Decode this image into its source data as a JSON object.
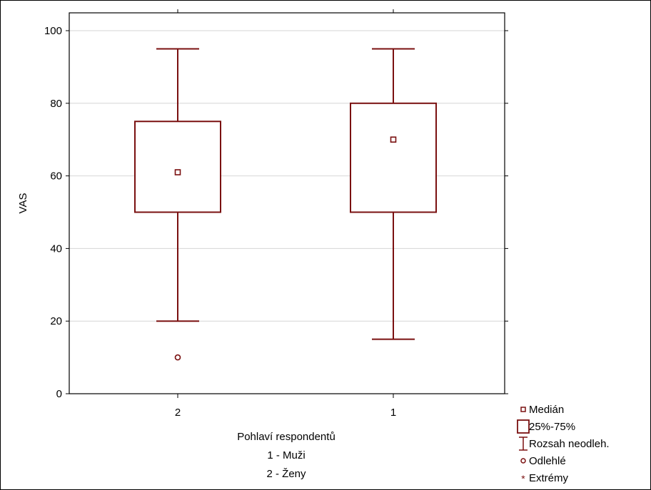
{
  "chart_data": {
    "type": "boxplot",
    "ylabel": "VAS",
    "xlabel_lines": [
      "Pohlaví respondentů",
      "1 - Muži",
      "2 - Ženy"
    ],
    "ylim": [
      0,
      100
    ],
    "yticks": [
      0,
      20,
      40,
      60,
      80,
      100
    ],
    "grid": true,
    "legend_position": "bottom-right, outside plot",
    "colors": {
      "series": "#7a1010",
      "grid": "#d6d6d6",
      "axis": "#000000"
    },
    "categories": [
      "2",
      "1"
    ],
    "boxes": [
      {
        "category": "2",
        "median": 61,
        "q1": 50,
        "q3": 75,
        "whisker_low": 20,
        "whisker_high": 95,
        "outliers": [
          10
        ],
        "extremes": []
      },
      {
        "category": "1",
        "median": 70,
        "q1": 50,
        "q3": 80,
        "whisker_low": 15,
        "whisker_high": 95,
        "outliers": [],
        "extremes": []
      }
    ],
    "legend": [
      {
        "symbol": "median-square",
        "label": "Medián"
      },
      {
        "symbol": "box",
        "label": "25%-75%"
      },
      {
        "symbol": "whisker",
        "label": "Rozsah neodleh."
      },
      {
        "symbol": "circle",
        "label": "Odlehlé"
      },
      {
        "symbol": "star",
        "label": "Extrémy"
      }
    ]
  }
}
